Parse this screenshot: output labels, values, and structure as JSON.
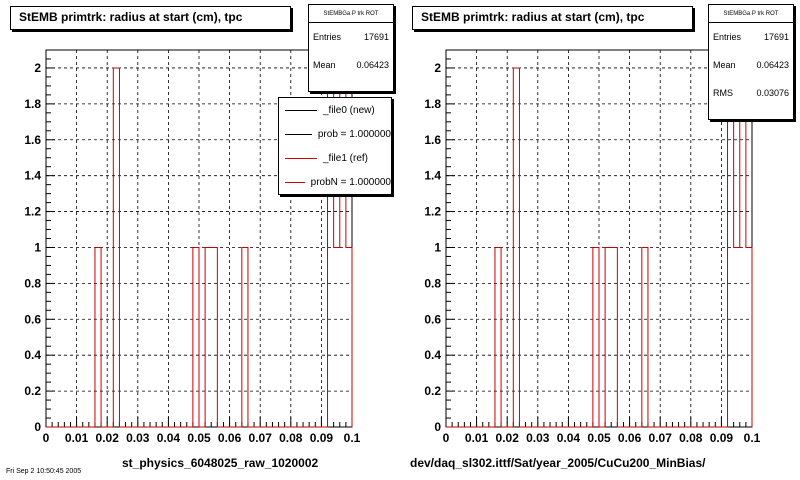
{
  "chart_data": [
    {
      "type": "bar",
      "title": "StEMB primtrk: radius at start (cm), tpc",
      "xlabel": "st_physics_6048025_raw_1020002",
      "ylabel": "",
      "xlim": [
        0,
        0.1
      ],
      "ylim": [
        0,
        2.1
      ],
      "xticks": [
        "0",
        "0.01",
        "0.02",
        "0.03",
        "0.04",
        "0.05",
        "0.06",
        "0.07",
        "0.08",
        "0.09",
        "0.1"
      ],
      "yticks": [
        "0",
        "0.2",
        "0.4",
        "0.6",
        "0.8",
        "1",
        "1.2",
        "1.4",
        "1.6",
        "1.8",
        "2"
      ],
      "grid": true,
      "bin_width": 0.002,
      "series": [
        {
          "name": "_file1 (ref)",
          "color": "#cc0000",
          "bins": [
            {
              "x": 0.016,
              "y": 1
            },
            {
              "x": 0.022,
              "y": 2
            },
            {
              "x": 0.048,
              "y": 1
            },
            {
              "x": 0.052,
              "y": 1
            },
            {
              "x": 0.054,
              "y": 1
            },
            {
              "x": 0.064,
              "y": 1
            },
            {
              "x": 0.092,
              "y": 2
            },
            {
              "x": 0.094,
              "y": 1
            },
            {
              "x": 0.096,
              "y": 2
            },
            {
              "x": 0.098,
              "y": 1
            }
          ]
        }
      ],
      "stats": {
        "header": "StEMBGa P trk ROT",
        "entries_label": "Entries",
        "entries": "17691",
        "mean_label": "Mean",
        "mean": "0.06423"
      },
      "legend": [
        {
          "label": "_file0 (new)",
          "color": "#000000"
        },
        {
          "label": "prob = 1.000000",
          "color": "#000000"
        },
        {
          "label": "_file1 (ref)",
          "color": "#cc0000"
        },
        {
          "label": "probN = 1.000000",
          "color": "#cc0000"
        }
      ]
    },
    {
      "type": "bar",
      "title": "StEMB primtrk: radius at start (cm), tpc",
      "xlabel": "dev/daq_sl302.ittf/Sat/year_2005/CuCu200_MinBias/",
      "ylabel": "",
      "xlim": [
        0,
        0.1
      ],
      "ylim": [
        0,
        2.1
      ],
      "xticks": [
        "0",
        "0.01",
        "0.02",
        "0.03",
        "0.04",
        "0.05",
        "0.06",
        "0.07",
        "0.08",
        "0.09",
        "0.1"
      ],
      "yticks": [
        "0",
        "0.2",
        "0.4",
        "0.6",
        "0.8",
        "1",
        "1.2",
        "1.4",
        "1.6",
        "1.8",
        "2"
      ],
      "grid": true,
      "bin_width": 0.002,
      "series": [
        {
          "name": "",
          "color": "#cc0000",
          "bins": [
            {
              "x": 0.016,
              "y": 1
            },
            {
              "x": 0.022,
              "y": 2
            },
            {
              "x": 0.048,
              "y": 1
            },
            {
              "x": 0.052,
              "y": 1
            },
            {
              "x": 0.054,
              "y": 1
            },
            {
              "x": 0.064,
              "y": 1
            },
            {
              "x": 0.092,
              "y": 2
            },
            {
              "x": 0.094,
              "y": 1
            },
            {
              "x": 0.096,
              "y": 2
            },
            {
              "x": 0.098,
              "y": 1
            }
          ]
        }
      ],
      "stats": {
        "header": "StEMBGa P trk ROT",
        "entries_label": "Entries",
        "entries": "17691",
        "mean_label": "Mean",
        "mean": "0.06423",
        "rms_label": "RMS",
        "rms": "0.03076"
      }
    }
  ],
  "footer": "Fri Sep 2 10:50:45 2005"
}
